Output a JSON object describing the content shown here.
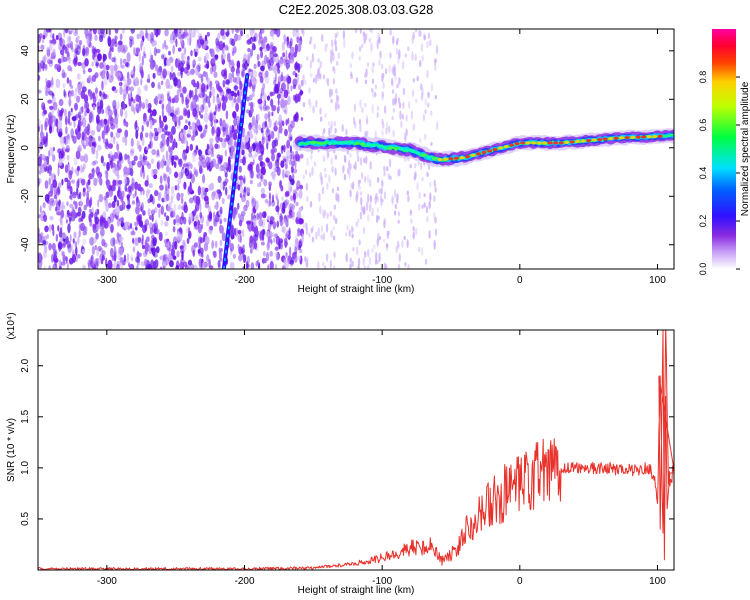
{
  "figure_title": "C2E2.2025.308.03.03.G28",
  "chart_data": [
    {
      "type": "heatmap",
      "panel": "top",
      "title": "C2E2.2025.308.03.03.G28",
      "xlabel": "Height of straight line (km)",
      "ylabel": "Frequency (Hz)",
      "xlim": [
        -350,
        112
      ],
      "ylim": [
        -50,
        49
      ],
      "x_ticks": [
        -300,
        -200,
        -100,
        0,
        100
      ],
      "x_tick_labels": [
        "-300",
        "-200",
        "-100",
        "0",
        "100"
      ],
      "y_ticks": [
        -40,
        -20,
        0,
        20,
        40
      ],
      "y_tick_labels": [
        "-40",
        "-20",
        "0",
        "20",
        "40"
      ],
      "colorbar": {
        "label": "Normalized spectral amplitude",
        "range": [
          0,
          1
        ],
        "ticks": [
          0.0,
          0.2,
          0.4,
          0.6,
          0.8
        ],
        "tick_labels": [
          "0.0",
          "0.2",
          "0.4",
          "0.6",
          "0.8"
        ],
        "colors": [
          "#ffffff",
          "#8a2be2",
          "#0000ff",
          "#00ffff",
          "#00ff00",
          "#ffff00",
          "#ff0000",
          "#ff00aa"
        ]
      },
      "features": {
        "diagonal_streak": {
          "x_start": -215,
          "y_start": -50,
          "x_end": -198,
          "y_end": 30
        },
        "main_ridge": [
          {
            "x": -160,
            "y": 2
          },
          {
            "x": -120,
            "y": 2
          },
          {
            "x": -80,
            "y": -1
          },
          {
            "x": -60,
            "y": -5
          },
          {
            "x": -40,
            "y": -4
          },
          {
            "x": -20,
            "y": -1
          },
          {
            "x": 0,
            "y": 2
          },
          {
            "x": 30,
            "y": 2
          },
          {
            "x": 70,
            "y": 4
          },
          {
            "x": 112,
            "y": 5
          }
        ],
        "dense_noise_region": [
          -350,
          -158
        ],
        "sparse_noise_region": [
          -158,
          -60
        ]
      }
    },
    {
      "type": "line",
      "panel": "bottom",
      "xlabel": "Height of straight line (km)",
      "ylabel": "SNR (10 * v/v)",
      "y_scale_label": "(x10⁴)",
      "xlim": [
        -350,
        112
      ],
      "ylim": [
        0,
        2.35
      ],
      "x_ticks": [
        -300,
        -200,
        -100,
        0,
        100
      ],
      "x_tick_labels": [
        "-300",
        "-200",
        "-100",
        "0",
        "100"
      ],
      "y_ticks": [
        0.5,
        1.0,
        1.5,
        2.0
      ],
      "y_tick_labels": [
        "0.5",
        "1.0",
        "1.5",
        "2.0"
      ],
      "color": "#e8312a",
      "series": [
        {
          "name": "SNR",
          "x": [
            -350,
            -200,
            -150,
            -120,
            -100,
            -80,
            -65,
            -55,
            -45,
            -40,
            -30,
            -20,
            -10,
            0,
            10,
            20,
            30,
            40,
            60,
            80,
            95,
            100,
            102,
            104,
            106,
            108,
            112
          ],
          "y": [
            0.01,
            0.01,
            0.02,
            0.05,
            0.1,
            0.18,
            0.2,
            0.1,
            0.2,
            0.4,
            0.55,
            0.65,
            0.75,
            0.8,
            0.9,
            0.95,
            1.0,
            1.0,
            1.0,
            0.98,
            1.0,
            0.7,
            1.9,
            0.3,
            2.35,
            0.9,
            0.95
          ]
        }
      ]
    }
  ]
}
